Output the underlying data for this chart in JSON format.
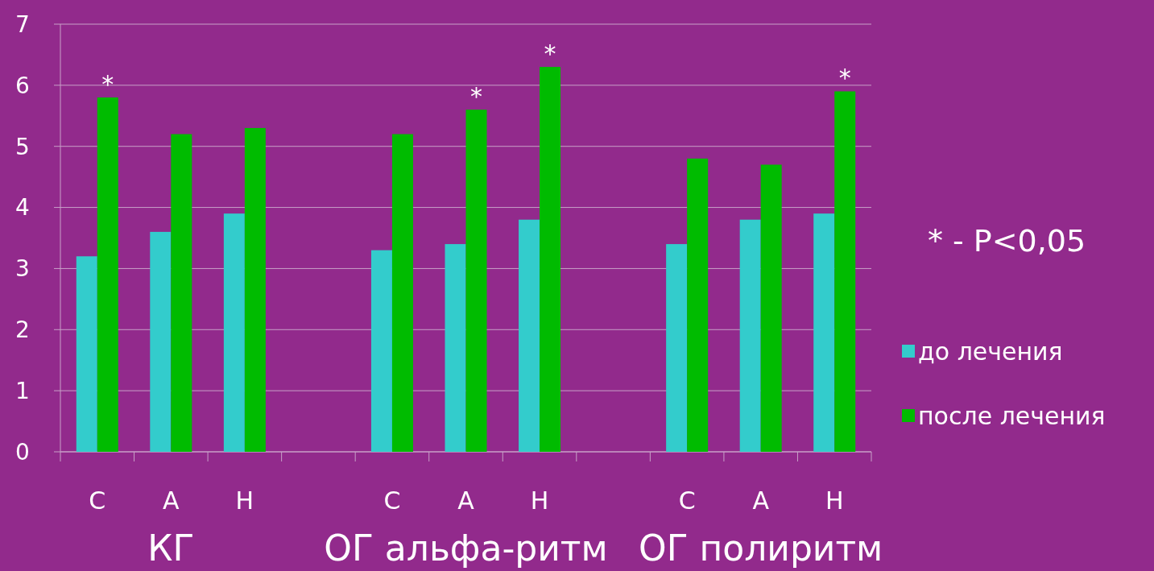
{
  "chart_data": {
    "type": "bar",
    "categories": [
      "С",
      "А",
      "Н",
      null,
      "С",
      "А",
      "Н",
      null,
      "С",
      "А",
      "Н"
    ],
    "series": [
      {
        "name": "до лечения",
        "color": "#33cccc",
        "values": [
          3.2,
          3.6,
          3.9,
          null,
          3.3,
          3.4,
          3.8,
          null,
          3.4,
          3.8,
          3.9
        ]
      },
      {
        "name": "после лечения",
        "color": "#00bb00",
        "values": [
          5.8,
          5.2,
          5.3,
          null,
          5.2,
          5.6,
          6.3,
          null,
          4.8,
          4.7,
          5.9
        ],
        "value_labels": [
          "*",
          null,
          null,
          null,
          null,
          "*",
          "*",
          null,
          null,
          null,
          "*"
        ]
      }
    ],
    "ylim": [
      0,
      7
    ],
    "yticks": [
      0,
      1,
      2,
      3,
      4,
      5,
      6,
      7
    ],
    "grid": "y",
    "legend": "right",
    "annotations": [
      "КГ",
      "ОГ альфа-ритм",
      "ОГ полиритм",
      "* - P<0,05"
    ]
  }
}
